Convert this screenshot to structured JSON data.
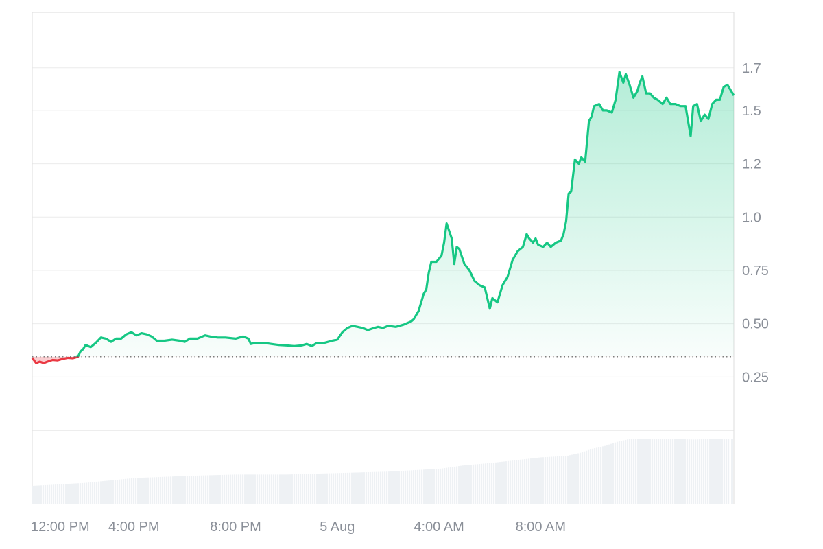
{
  "chart_data": {
    "type": "area",
    "title": "",
    "xlabel": "",
    "ylabel": "",
    "x_ticks": [
      {
        "label": "12:00 PM",
        "t": 0
      },
      {
        "label": "4:00 PM",
        "t": 4
      },
      {
        "label": "8:00 PM",
        "t": 8
      },
      {
        "label": "5 Aug",
        "t": 12
      },
      {
        "label": "4:00 AM",
        "t": 16
      },
      {
        "label": "8:00 AM",
        "t": 20
      }
    ],
    "y_ticks": [
      {
        "label": "1.7",
        "value": 1.7
      },
      {
        "label": "1.5",
        "value": 1.5
      },
      {
        "label": "1.2",
        "value": 1.25
      },
      {
        "label": "1.0",
        "value": 1.0
      },
      {
        "label": "0.75",
        "value": 0.75
      },
      {
        "label": "0.50",
        "value": 0.5
      },
      {
        "label": "0.25",
        "value": 0.25
      }
    ],
    "ylim": [
      -0.0,
      1.96
    ],
    "baseline": 0.345,
    "colors": {
      "up": "#16c784",
      "down": "#ea3943",
      "grid": "#ececec",
      "volume": "#eef1f4"
    },
    "grid": true,
    "series": [
      {
        "values": [
          [
            0.0,
            0.34
          ],
          [
            0.15,
            0.315
          ],
          [
            0.3,
            0.322
          ],
          [
            0.45,
            0.315
          ],
          [
            0.6,
            0.322
          ],
          [
            0.8,
            0.33
          ],
          [
            1.0,
            0.328
          ],
          [
            1.2,
            0.335
          ],
          [
            1.4,
            0.34
          ],
          [
            1.6,
            0.338
          ],
          [
            1.8,
            0.345
          ],
          [
            1.9,
            0.37
          ],
          [
            2.0,
            0.38
          ],
          [
            2.1,
            0.4
          ],
          [
            2.3,
            0.39
          ],
          [
            2.5,
            0.41
          ],
          [
            2.7,
            0.435
          ],
          [
            2.9,
            0.43
          ],
          [
            3.1,
            0.415
          ],
          [
            3.3,
            0.43
          ],
          [
            3.5,
            0.43
          ],
          [
            3.7,
            0.45
          ],
          [
            3.9,
            0.46
          ],
          [
            4.1,
            0.445
          ],
          [
            4.3,
            0.455
          ],
          [
            4.5,
            0.45
          ],
          [
            4.7,
            0.44
          ],
          [
            4.9,
            0.42
          ],
          [
            5.2,
            0.42
          ],
          [
            5.5,
            0.425
          ],
          [
            5.8,
            0.42
          ],
          [
            6.0,
            0.415
          ],
          [
            6.2,
            0.43
          ],
          [
            6.5,
            0.43
          ],
          [
            6.8,
            0.445
          ],
          [
            7.0,
            0.44
          ],
          [
            7.3,
            0.435
          ],
          [
            7.6,
            0.435
          ],
          [
            8.0,
            0.43
          ],
          [
            8.3,
            0.44
          ],
          [
            8.5,
            0.43
          ],
          [
            8.6,
            0.405
          ],
          [
            8.8,
            0.41
          ],
          [
            9.1,
            0.41
          ],
          [
            9.4,
            0.405
          ],
          [
            9.7,
            0.4
          ],
          [
            10.0,
            0.398
          ],
          [
            10.3,
            0.395
          ],
          [
            10.6,
            0.398
          ],
          [
            10.8,
            0.405
          ],
          [
            11.0,
            0.395
          ],
          [
            11.2,
            0.41
          ],
          [
            11.5,
            0.41
          ],
          [
            11.8,
            0.42
          ],
          [
            12.0,
            0.425
          ],
          [
            12.2,
            0.46
          ],
          [
            12.4,
            0.48
          ],
          [
            12.6,
            0.49
          ],
          [
            12.8,
            0.485
          ],
          [
            13.0,
            0.48
          ],
          [
            13.2,
            0.47
          ],
          [
            13.4,
            0.478
          ],
          [
            13.6,
            0.485
          ],
          [
            13.8,
            0.48
          ],
          [
            14.0,
            0.49
          ],
          [
            14.3,
            0.485
          ],
          [
            14.6,
            0.495
          ],
          [
            14.9,
            0.51
          ],
          [
            15.0,
            0.52
          ],
          [
            15.2,
            0.56
          ],
          [
            15.4,
            0.64
          ],
          [
            15.5,
            0.66
          ],
          [
            15.6,
            0.74
          ],
          [
            15.7,
            0.79
          ],
          [
            15.9,
            0.79
          ],
          [
            16.1,
            0.82
          ],
          [
            16.2,
            0.88
          ],
          [
            16.3,
            0.97
          ],
          [
            16.5,
            0.9
          ],
          [
            16.6,
            0.78
          ],
          [
            16.7,
            0.86
          ],
          [
            16.8,
            0.85
          ],
          [
            17.0,
            0.78
          ],
          [
            17.2,
            0.75
          ],
          [
            17.4,
            0.7
          ],
          [
            17.6,
            0.68
          ],
          [
            17.8,
            0.67
          ],
          [
            18.0,
            0.57
          ],
          [
            18.1,
            0.62
          ],
          [
            18.3,
            0.6
          ],
          [
            18.5,
            0.68
          ],
          [
            18.7,
            0.72
          ],
          [
            18.9,
            0.8
          ],
          [
            19.1,
            0.84
          ],
          [
            19.3,
            0.86
          ],
          [
            19.45,
            0.92
          ],
          [
            19.55,
            0.9
          ],
          [
            19.7,
            0.88
          ],
          [
            19.8,
            0.9
          ],
          [
            19.9,
            0.87
          ],
          [
            20.1,
            0.86
          ],
          [
            20.25,
            0.88
          ],
          [
            20.4,
            0.86
          ],
          [
            20.6,
            0.88
          ],
          [
            20.8,
            0.89
          ],
          [
            20.9,
            0.92
          ],
          [
            21.0,
            0.98
          ],
          [
            21.1,
            1.11
          ],
          [
            21.2,
            1.12
          ],
          [
            21.35,
            1.27
          ],
          [
            21.5,
            1.25
          ],
          [
            21.6,
            1.28
          ],
          [
            21.75,
            1.26
          ],
          [
            21.9,
            1.45
          ],
          [
            22.0,
            1.47
          ],
          [
            22.1,
            1.52
          ],
          [
            22.3,
            1.53
          ],
          [
            22.45,
            1.5
          ],
          [
            22.6,
            1.5
          ],
          [
            22.8,
            1.49
          ],
          [
            22.95,
            1.55
          ],
          [
            23.1,
            1.68
          ],
          [
            23.25,
            1.63
          ],
          [
            23.35,
            1.67
          ],
          [
            23.5,
            1.62
          ],
          [
            23.65,
            1.56
          ],
          [
            23.8,
            1.59
          ],
          [
            23.9,
            1.63
          ],
          [
            24.0,
            1.66
          ],
          [
            24.15,
            1.58
          ],
          [
            24.3,
            1.58
          ],
          [
            24.45,
            1.56
          ],
          [
            24.6,
            1.55
          ],
          [
            24.8,
            1.53
          ],
          [
            24.95,
            1.56
          ],
          [
            25.1,
            1.53
          ],
          [
            25.3,
            1.53
          ],
          [
            25.5,
            1.52
          ],
          [
            25.7,
            1.52
          ],
          [
            25.9,
            1.38
          ],
          [
            26.0,
            1.52
          ],
          [
            26.15,
            1.53
          ],
          [
            26.3,
            1.45
          ],
          [
            26.45,
            1.48
          ],
          [
            26.6,
            1.46
          ],
          [
            26.75,
            1.53
          ],
          [
            26.9,
            1.55
          ],
          [
            27.05,
            1.55
          ],
          [
            27.2,
            1.61
          ],
          [
            27.35,
            1.62
          ],
          [
            27.5,
            1.59
          ],
          [
            27.6,
            1.57
          ]
        ]
      }
    ],
    "volume": {
      "values": [
        [
          0.0,
          0.26
        ],
        [
          2.0,
          0.3
        ],
        [
          4.0,
          0.37
        ],
        [
          6.0,
          0.4
        ],
        [
          8.0,
          0.42
        ],
        [
          10.0,
          0.42
        ],
        [
          12.0,
          0.44
        ],
        [
          14.0,
          0.46
        ],
        [
          16.0,
          0.5
        ],
        [
          17.0,
          0.55
        ],
        [
          18.0,
          0.58
        ],
        [
          19.0,
          0.62
        ],
        [
          20.0,
          0.66
        ],
        [
          21.0,
          0.68
        ],
        [
          21.5,
          0.72
        ],
        [
          22.0,
          0.78
        ],
        [
          22.5,
          0.82
        ],
        [
          23.0,
          0.88
        ],
        [
          23.5,
          0.92
        ],
        [
          24.0,
          0.92
        ],
        [
          25.0,
          0.92
        ],
        [
          26.0,
          0.91
        ],
        [
          27.0,
          0.92
        ],
        [
          27.4,
          0.92
        ]
      ]
    }
  }
}
